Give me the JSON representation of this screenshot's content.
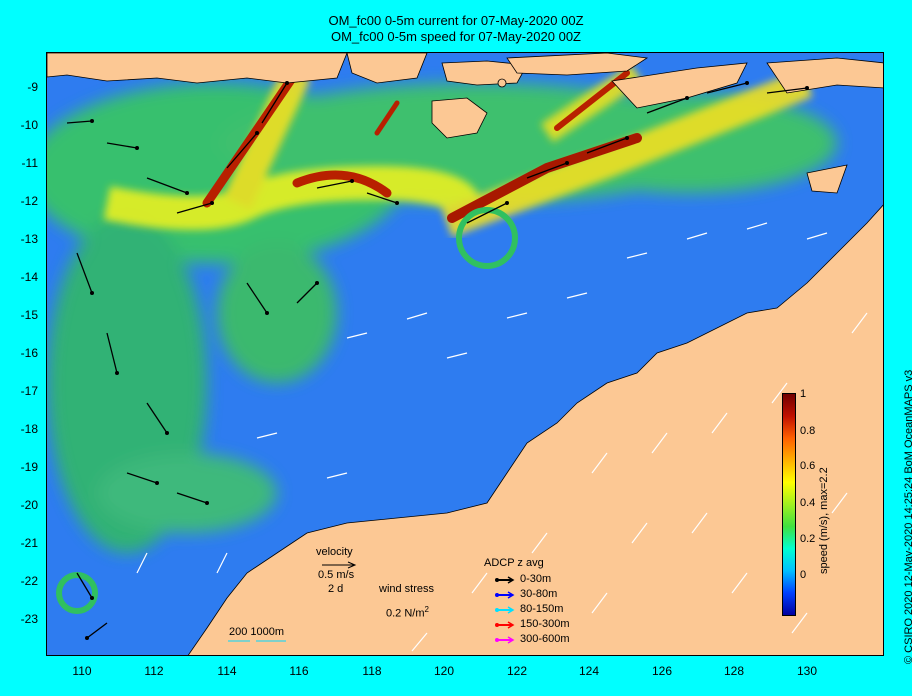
{
  "title": {
    "line1": "OM_fc00 0-5m current for 07-May-2020 00Z",
    "line2": "OM_fc00 0-5m speed for 07-May-2020 00Z"
  },
  "axes": {
    "lat_labels": [
      "-9",
      "-10",
      "-11",
      "-12",
      "-13",
      "-14",
      "-15",
      "-16",
      "-17",
      "-18",
      "-19",
      "-20",
      "-21",
      "-22",
      "-23"
    ],
    "lon_labels": [
      "110",
      "112",
      "114",
      "116",
      "118",
      "120",
      "122",
      "124",
      "126",
      "128",
      "130"
    ]
  },
  "side_text": "© CSIRO 2020  12-May-2020 14:25:24 BoM OceanMAPS v3",
  "colorbar": {
    "label": "speed (m/s), max=2.2",
    "ticks": [
      "1",
      "0.8",
      "0.6",
      "0.4",
      "0.2",
      "0"
    ]
  },
  "legend": {
    "velocity_label": "velocity",
    "velocity_value": "0.5 m/s",
    "velocity_days": "2 d",
    "wind_label": "wind stress",
    "wind_value": "0.2 N/m",
    "wind_sup": "2",
    "depth_label": "200  1000m",
    "adcp_title": "ADCP z avg",
    "adcp_items": [
      {
        "label": "0-30m",
        "color": "#000000"
      },
      {
        "label": "30-80m",
        "color": "#0000ff"
      },
      {
        "label": "80-150m",
        "color": "#00e0ff"
      },
      {
        "label": "150-300m",
        "color": "#ff0000"
      },
      {
        "label": "300-600m",
        "color": "#ff00ff"
      }
    ]
  },
  "colors": {
    "background": "#00ffff",
    "land": "#fcc894",
    "ocean_slow": "#2e7cf0",
    "ocean_mid": "#30d060",
    "ocean_fast": "#b82000"
  }
}
